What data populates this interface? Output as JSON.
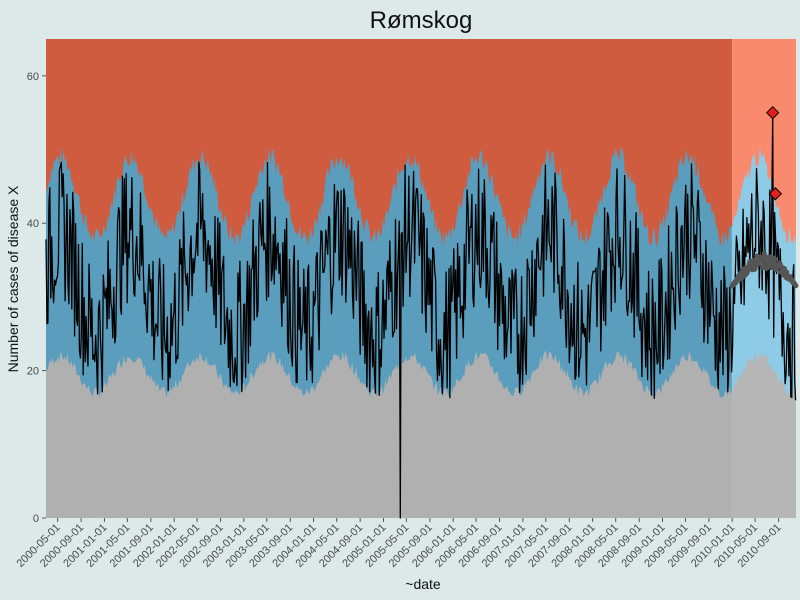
{
  "chart_data": {
    "type": "area",
    "title": "Rømskog",
    "xlabel": "~date",
    "ylabel": "Number of cases of disease X",
    "x_start": "2000-03-01",
    "x_end": "2010-12-01",
    "forecast_start": "2010-01-01",
    "ylim": [
      0,
      65
    ],
    "yticks": [
      0,
      20,
      40,
      60
    ],
    "xtick_labels": [
      "2000-05-01",
      "2000-09-01",
      "2001-01-01",
      "2001-05-01",
      "2001-09-01",
      "2002-01-01",
      "2002-05-01",
      "2002-09-01",
      "2003-01-01",
      "2003-05-01",
      "2003-09-01",
      "2004-01-01",
      "2004-05-01",
      "2004-09-01",
      "2005-01-01",
      "2005-05-01",
      "2005-09-01",
      "2006-01-01",
      "2006-05-01",
      "2006-09-01",
      "2007-01-01",
      "2007-05-01",
      "2007-09-01",
      "2008-01-01",
      "2008-05-01",
      "2008-09-01",
      "2009-01-01",
      "2009-05-01",
      "2009-09-01",
      "2010-01-01",
      "2010-05-01",
      "2010-09-01"
    ],
    "regions": {
      "above_threshold": "#cf5c3f",
      "expected_range": "#5a9dbd",
      "below_expected": "#b0b0b0",
      "forecast_above_threshold": "#fa8a6e",
      "forecast_expected_range": "#8ecbe6",
      "forecast_below_expected": "#b6b6b6"
    },
    "seasonal_band": {
      "upper_mean": 43.5,
      "upper_amplitude": 5.5,
      "lower_mean": 19.5,
      "lower_amplitude": 2.5,
      "peak_month": 5
    },
    "observed_series": {
      "name": "",
      "color": "#000000",
      "min": 0,
      "min_date": "2005-04-01",
      "max": 55,
      "max_date": "2010-08-01"
    },
    "forecast_points": {
      "color": "#555555",
      "from": "2010-01-01",
      "to": "2010-12-01",
      "range": [
        27,
        37
      ]
    },
    "alert_points": {
      "color": "#e0201b",
      "points": [
        {
          "date": "2010-08-01",
          "value": 55
        },
        {
          "date": "2010-08-15",
          "value": 44
        }
      ]
    }
  }
}
